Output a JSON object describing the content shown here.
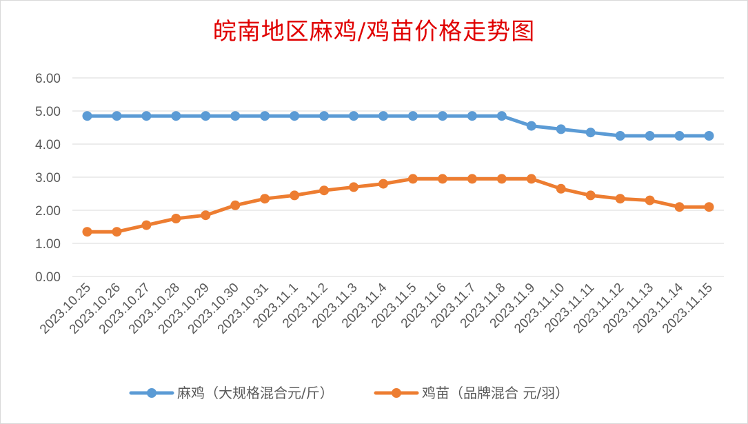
{
  "chart_data": {
    "type": "line",
    "title": "皖南地区麻鸡/鸡苗价格走势图",
    "categories": [
      "2023.10.25",
      "2023.10.26",
      "2023.10.27",
      "2023.10.28",
      "2023.10.29",
      "2023.10.30",
      "2023.10.31",
      "2023.11.1",
      "2023.11.2",
      "2023.11.3",
      "2023.11.4",
      "2023.11.5",
      "2023.11.6",
      "2023.11.7",
      "2023.11.8",
      "2023.11.9",
      "2023.11.10",
      "2023.11.11",
      "2023.11.12",
      "2023.11.13",
      "2023.11.14",
      "2023.11.15"
    ],
    "y_ticks": [
      "0.00",
      "1.00",
      "2.00",
      "3.00",
      "4.00",
      "5.00",
      "6.00"
    ],
    "ylim": [
      0,
      6
    ],
    "grid": true,
    "legend_position": "bottom",
    "series": [
      {
        "name": "麻鸡（大规格混合元/斤）",
        "color": "#5b9bd5",
        "values": [
          4.85,
          4.85,
          4.85,
          4.85,
          4.85,
          4.85,
          4.85,
          4.85,
          4.85,
          4.85,
          4.85,
          4.85,
          4.85,
          4.85,
          4.85,
          4.55,
          4.45,
          4.35,
          4.25,
          4.25,
          4.25,
          4.25
        ]
      },
      {
        "name": "鸡苗（品牌混合 元/羽）",
        "color": "#ed7d31",
        "values": [
          1.35,
          1.35,
          1.55,
          1.75,
          1.85,
          2.15,
          2.35,
          2.45,
          2.6,
          2.7,
          2.8,
          2.95,
          2.95,
          2.95,
          2.95,
          2.95,
          2.65,
          2.45,
          2.35,
          2.3,
          2.1,
          2.1
        ]
      }
    ]
  }
}
